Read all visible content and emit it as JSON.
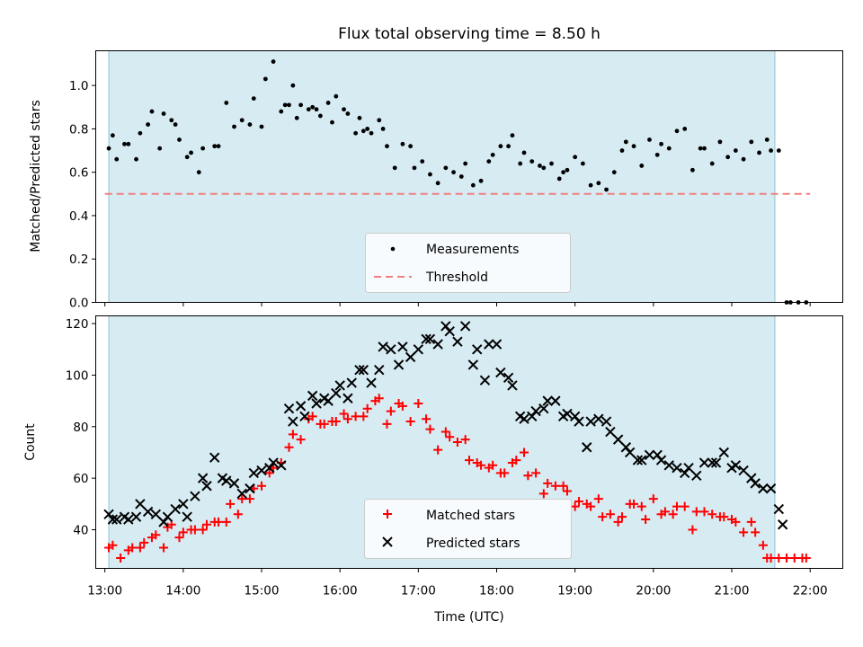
{
  "chart_data": [
    {
      "type": "scatter",
      "title": "Flux total observing time = 8.50 h",
      "xlabel": "",
      "ylabel": "Matched/Predicted stars",
      "xlim": [
        "12:53",
        "22:25"
      ],
      "ylim": [
        0.0,
        1.16
      ],
      "yticks": [
        "0.0",
        "0.2",
        "0.4",
        "0.6",
        "0.8",
        "1.0"
      ],
      "observing_window": [
        "13:03",
        "21:33"
      ],
      "legend_position": "lower-center",
      "series": [
        {
          "name": "Measurements",
          "color": "#000000",
          "marker": "dot",
          "x": [
            "13:03",
            "13:06",
            "13:09",
            "13:15",
            "13:18",
            "13:24",
            "13:27",
            "13:33",
            "13:36",
            "13:42",
            "13:45",
            "13:51",
            "13:54",
            "13:57",
            "14:03",
            "14:06",
            "14:12",
            "14:15",
            "14:24",
            "14:27",
            "14:33",
            "14:39",
            "14:45",
            "14:51",
            "14:54",
            "15:00",
            "15:03",
            "15:09",
            "15:15",
            "15:18",
            "15:21",
            "15:24",
            "15:27",
            "15:30",
            "15:36",
            "15:39",
            "15:42",
            "15:45",
            "15:51",
            "15:54",
            "15:57",
            "16:03",
            "16:06",
            "16:12",
            "16:15",
            "16:18",
            "16:21",
            "16:24",
            "16:30",
            "16:33",
            "16:36",
            "16:42",
            "16:48",
            "16:54",
            "16:57",
            "17:03",
            "17:09",
            "17:15",
            "17:21",
            "17:27",
            "17:33",
            "17:36",
            "17:42",
            "17:48",
            "17:54",
            "17:57",
            "18:03",
            "18:09",
            "18:12",
            "18:18",
            "18:21",
            "18:27",
            "18:33",
            "18:36",
            "18:42",
            "18:48",
            "18:51",
            "18:54",
            "19:00",
            "19:06",
            "19:12",
            "19:18",
            "19:24",
            "19:30",
            "19:36",
            "19:39",
            "19:45",
            "19:51",
            "19:57",
            "20:03",
            "20:06",
            "20:12",
            "20:18",
            "20:24",
            "20:30",
            "20:36",
            "20:39",
            "20:45",
            "20:51",
            "20:57",
            "21:03",
            "21:09",
            "21:15",
            "21:21",
            "21:27",
            "21:30",
            "21:36",
            "21:42",
            "21:45",
            "21:51",
            "21:57"
          ],
          "y": [
            0.71,
            0.77,
            0.66,
            0.73,
            0.73,
            0.66,
            0.78,
            0.82,
            0.88,
            0.71,
            0.87,
            0.84,
            0.82,
            0.75,
            0.67,
            0.69,
            0.6,
            0.71,
            0.72,
            0.72,
            0.92,
            0.81,
            0.84,
            0.82,
            0.94,
            0.81,
            1.03,
            1.11,
            0.88,
            0.91,
            0.91,
            1.0,
            0.85,
            0.91,
            0.89,
            0.9,
            0.89,
            0.86,
            0.92,
            0.83,
            0.95,
            0.89,
            0.87,
            0.78,
            0.85,
            0.79,
            0.8,
            0.78,
            0.84,
            0.8,
            0.72,
            0.62,
            0.73,
            0.72,
            0.62,
            0.65,
            0.59,
            0.55,
            0.62,
            0.6,
            0.58,
            0.64,
            0.54,
            0.56,
            0.65,
            0.68,
            0.72,
            0.72,
            0.77,
            0.64,
            0.69,
            0.65,
            0.63,
            0.62,
            0.64,
            0.57,
            0.6,
            0.61,
            0.67,
            0.64,
            0.54,
            0.55,
            0.52,
            0.6,
            0.7,
            0.74,
            0.72,
            0.63,
            0.75,
            0.68,
            0.73,
            0.71,
            0.79,
            0.8,
            0.61,
            0.71,
            0.71,
            0.64,
            0.74,
            0.67,
            0.7,
            0.66,
            0.74,
            0.69,
            0.75,
            0.7,
            0.7,
            0.0,
            0.0,
            0.0,
            0.0
          ]
        },
        {
          "name": "Threshold",
          "color": "#f08080",
          "style": "dashed",
          "x": [
            "13:00",
            "22:00"
          ],
          "y": [
            0.5,
            0.5
          ]
        }
      ]
    },
    {
      "type": "scatter",
      "title": "",
      "xlabel": "Time (UTC)",
      "ylabel": "Count",
      "xlim": [
        "12:53",
        "22:25"
      ],
      "ylim": [
        25,
        123
      ],
      "yticks": [
        "40",
        "60",
        "80",
        "100",
        "120"
      ],
      "xticks": [
        "13:00",
        "14:00",
        "15:00",
        "16:00",
        "17:00",
        "18:00",
        "19:00",
        "20:00",
        "21:00",
        "22:00"
      ],
      "observing_window": [
        "13:03",
        "21:33"
      ],
      "legend_position": "lower-center",
      "series": [
        {
          "name": "Matched stars",
          "color": "#ff0000",
          "marker": "plus",
          "x": [
            "13:03",
            "13:06",
            "13:12",
            "13:18",
            "13:21",
            "13:27",
            "13:30",
            "13:36",
            "13:39",
            "13:45",
            "13:48",
            "13:51",
            "13:57",
            "14:00",
            "14:06",
            "14:09",
            "14:15",
            "14:18",
            "14:24",
            "14:27",
            "14:33",
            "14:36",
            "14:42",
            "14:45",
            "14:51",
            "14:54",
            "15:00",
            "15:06",
            "15:09",
            "15:15",
            "15:21",
            "15:24",
            "15:30",
            "15:36",
            "15:39",
            "15:45",
            "15:48",
            "15:54",
            "15:57",
            "16:03",
            "16:06",
            "16:12",
            "16:18",
            "16:21",
            "16:27",
            "16:30",
            "16:36",
            "16:39",
            "16:45",
            "16:48",
            "16:54",
            "17:00",
            "17:06",
            "17:09",
            "17:15",
            "17:21",
            "17:24",
            "17:30",
            "17:36",
            "17:39",
            "17:45",
            "17:48",
            "17:54",
            "17:57",
            "18:03",
            "18:06",
            "18:12",
            "18:15",
            "18:21",
            "18:24",
            "18:30",
            "18:36",
            "18:39",
            "18:45",
            "18:51",
            "18:54",
            "19:00",
            "19:03",
            "19:09",
            "19:12",
            "19:18",
            "19:21",
            "19:27",
            "19:33",
            "19:36",
            "19:42",
            "19:45",
            "19:51",
            "19:54",
            "20:00",
            "20:06",
            "20:09",
            "20:15",
            "20:18",
            "20:24",
            "20:30",
            "20:33",
            "20:39",
            "20:45",
            "20:51",
            "20:54",
            "21:00",
            "21:03",
            "21:09",
            "21:15",
            "21:18",
            "21:24",
            "21:27",
            "21:30",
            "21:36",
            "21:42",
            "21:48",
            "21:54",
            "21:57"
          ],
          "y": [
            33,
            34,
            29,
            32,
            33,
            33,
            35,
            37,
            38,
            33,
            41,
            42,
            37,
            39,
            40,
            40,
            40,
            42,
            43,
            43,
            43,
            50,
            46,
            52,
            52,
            56,
            57,
            62,
            64,
            66,
            72,
            77,
            75,
            83,
            84,
            81,
            81,
            82,
            82,
            85,
            83,
            84,
            84,
            87,
            90,
            91,
            81,
            86,
            89,
            88,
            82,
            89,
            83,
            79,
            71,
            78,
            76,
            74,
            75,
            67,
            66,
            65,
            64,
            65,
            62,
            62,
            66,
            67,
            70,
            61,
            62,
            54,
            58,
            57,
            57,
            55,
            49,
            51,
            50,
            49,
            52,
            45,
            46,
            43,
            45,
            50,
            50,
            49,
            44,
            52,
            46,
            47,
            46,
            49,
            49,
            40,
            47,
            47,
            46,
            45,
            45,
            44,
            43,
            39,
            43,
            39,
            34,
            29,
            29,
            29,
            29,
            29,
            29,
            29
          ]
        },
        {
          "name": "Predicted stars",
          "color": "#000000",
          "marker": "x",
          "x": [
            "13:03",
            "13:06",
            "13:09",
            "13:15",
            "13:18",
            "13:24",
            "13:27",
            "13:33",
            "13:39",
            "13:45",
            "13:48",
            "13:54",
            "14:00",
            "14:03",
            "14:09",
            "14:15",
            "14:18",
            "14:24",
            "14:30",
            "14:33",
            "14:39",
            "14:45",
            "14:51",
            "14:54",
            "15:00",
            "15:06",
            "15:09",
            "15:15",
            "15:21",
            "15:24",
            "15:30",
            "15:33",
            "15:39",
            "15:42",
            "15:48",
            "15:51",
            "15:57",
            "16:00",
            "16:06",
            "16:09",
            "16:15",
            "16:18",
            "16:24",
            "16:30",
            "16:33",
            "16:39",
            "16:45",
            "16:48",
            "16:54",
            "17:00",
            "17:06",
            "17:09",
            "17:15",
            "17:21",
            "17:24",
            "17:30",
            "17:36",
            "17:42",
            "17:45",
            "17:51",
            "17:54",
            "18:00",
            "18:03",
            "18:09",
            "18:12",
            "18:18",
            "18:21",
            "18:27",
            "18:30",
            "18:36",
            "18:39",
            "18:45",
            "18:51",
            "18:54",
            "19:00",
            "19:03",
            "19:09",
            "19:12",
            "19:18",
            "19:24",
            "19:27",
            "19:33",
            "19:39",
            "19:42",
            "19:48",
            "19:51",
            "19:57",
            "20:03",
            "20:06",
            "20:12",
            "20:18",
            "20:24",
            "20:27",
            "20:33",
            "20:39",
            "20:45",
            "20:48",
            "20:54",
            "21:00",
            "21:03",
            "21:09",
            "21:15",
            "21:18",
            "21:24",
            "21:30",
            "21:36",
            "21:39"
          ],
          "y": [
            46,
            44,
            44,
            45,
            44,
            45,
            50,
            47,
            46,
            43,
            45,
            48,
            50,
            45,
            53,
            60,
            57,
            68,
            60,
            59,
            58,
            54,
            56,
            62,
            63,
            64,
            66,
            65,
            87,
            82,
            88,
            84,
            92,
            89,
            91,
            90,
            93,
            96,
            91,
            97,
            102,
            102,
            97,
            102,
            111,
            110,
            104,
            111,
            107,
            110,
            114,
            114,
            112,
            119,
            117,
            113,
            119,
            104,
            110,
            98,
            112,
            112,
            101,
            99,
            96,
            84,
            83,
            84,
            86,
            87,
            90,
            90,
            84,
            85,
            84,
            82,
            72,
            82,
            83,
            82,
            78,
            75,
            72,
            70,
            67,
            67,
            69,
            69,
            67,
            65,
            64,
            62,
            64,
            61,
            66,
            66,
            66,
            70,
            64,
            65,
            63,
            60,
            58,
            56,
            56,
            48,
            42
          ]
        }
      ]
    }
  ]
}
